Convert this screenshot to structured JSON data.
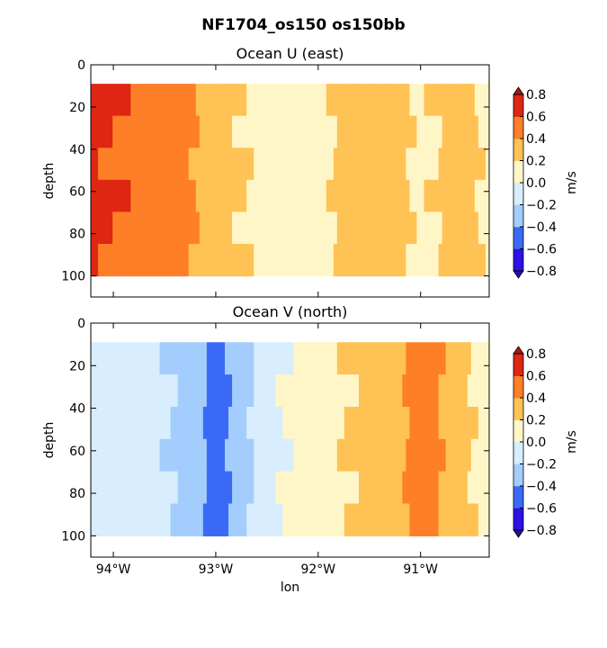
{
  "figure": {
    "suptitle": "NF1704_os150 os150bb"
  },
  "chart_data": [
    {
      "type": "heatmap",
      "title": "Ocean U (east)",
      "xlabel": "",
      "ylabel": "depth",
      "y_ticks": [
        0,
        20,
        40,
        60,
        80,
        100
      ],
      "y_tick_labels": [
        "0",
        "20",
        "40",
        "60",
        "80",
        "100"
      ],
      "ylim": [
        110,
        0
      ],
      "y_inverted": true,
      "xlim": [
        -94.22,
        -90.33
      ],
      "x_ticks": [
        -94,
        -93,
        -92,
        -91
      ],
      "x_tick_labels": [],
      "data_depth_range": [
        9,
        100
      ],
      "lon_profile": [
        -94.2,
        -93.5,
        -93.2,
        -93.0,
        -92.6,
        -92.2,
        -92.0,
        -91.7,
        -91.4,
        -91.2,
        -91.0,
        -90.6,
        -90.33
      ],
      "values_m_s": [
        0.65,
        0.5,
        0.4,
        0.3,
        0.15,
        0.1,
        0.12,
        0.3,
        0.35,
        0.25,
        0.15,
        0.3,
        0.15
      ],
      "colorbar": {
        "label": "m/s",
        "levels": [
          -0.8,
          -0.6,
          -0.4,
          -0.2,
          0.0,
          0.2,
          0.4,
          0.6,
          0.8
        ],
        "tick_labels": [
          "−0.8",
          "−0.6",
          "−0.4",
          "−0.2",
          "0.0",
          "0.2",
          "0.4",
          "0.6",
          "0.8"
        ],
        "colors": [
          "#2f10e6",
          "#3a6af5",
          "#a3cdfc",
          "#d8edfd",
          "#fff6c8",
          "#ffc254",
          "#fe7f27",
          "#df2612"
        ],
        "extend_low": "#2a0ea6",
        "extend_high": "#a51a10"
      }
    },
    {
      "type": "heatmap",
      "title": "Ocean V (north)",
      "xlabel": "lon",
      "ylabel": "depth",
      "y_ticks": [
        0,
        20,
        40,
        60,
        80,
        100
      ],
      "y_tick_labels": [
        "0",
        "20",
        "40",
        "60",
        "80",
        "100"
      ],
      "ylim": [
        110,
        0
      ],
      "y_inverted": true,
      "xlim": [
        -94.22,
        -90.33
      ],
      "x_ticks": [
        -94,
        -93,
        -92,
        -91
      ],
      "x_tick_labels": [
        "94°W",
        "93°W",
        "92°W",
        "91°W"
      ],
      "data_depth_range": [
        9,
        100
      ],
      "lon_profile": [
        -94.2,
        -93.6,
        -93.2,
        -93.0,
        -92.7,
        -92.5,
        -92.0,
        -91.7,
        -91.2,
        -91.0,
        -90.8,
        -90.5,
        -90.33
      ],
      "values_m_s": [
        -0.1,
        -0.15,
        -0.3,
        -0.5,
        -0.25,
        -0.05,
        0.1,
        0.2,
        0.35,
        0.55,
        0.4,
        0.2,
        0.1
      ],
      "colorbar": {
        "label": "m/s",
        "levels": [
          -0.8,
          -0.6,
          -0.4,
          -0.2,
          0.0,
          0.2,
          0.4,
          0.6,
          0.8
        ],
        "tick_labels": [
          "−0.8",
          "−0.6",
          "−0.4",
          "−0.2",
          "0.0",
          "0.2",
          "0.4",
          "0.6",
          "0.8"
        ],
        "colors": [
          "#2f10e6",
          "#3a6af5",
          "#a3cdfc",
          "#d8edfd",
          "#fff6c8",
          "#ffc254",
          "#fe7f27",
          "#df2612"
        ],
        "extend_low": "#2a0ea6",
        "extend_high": "#a51a10"
      }
    }
  ]
}
